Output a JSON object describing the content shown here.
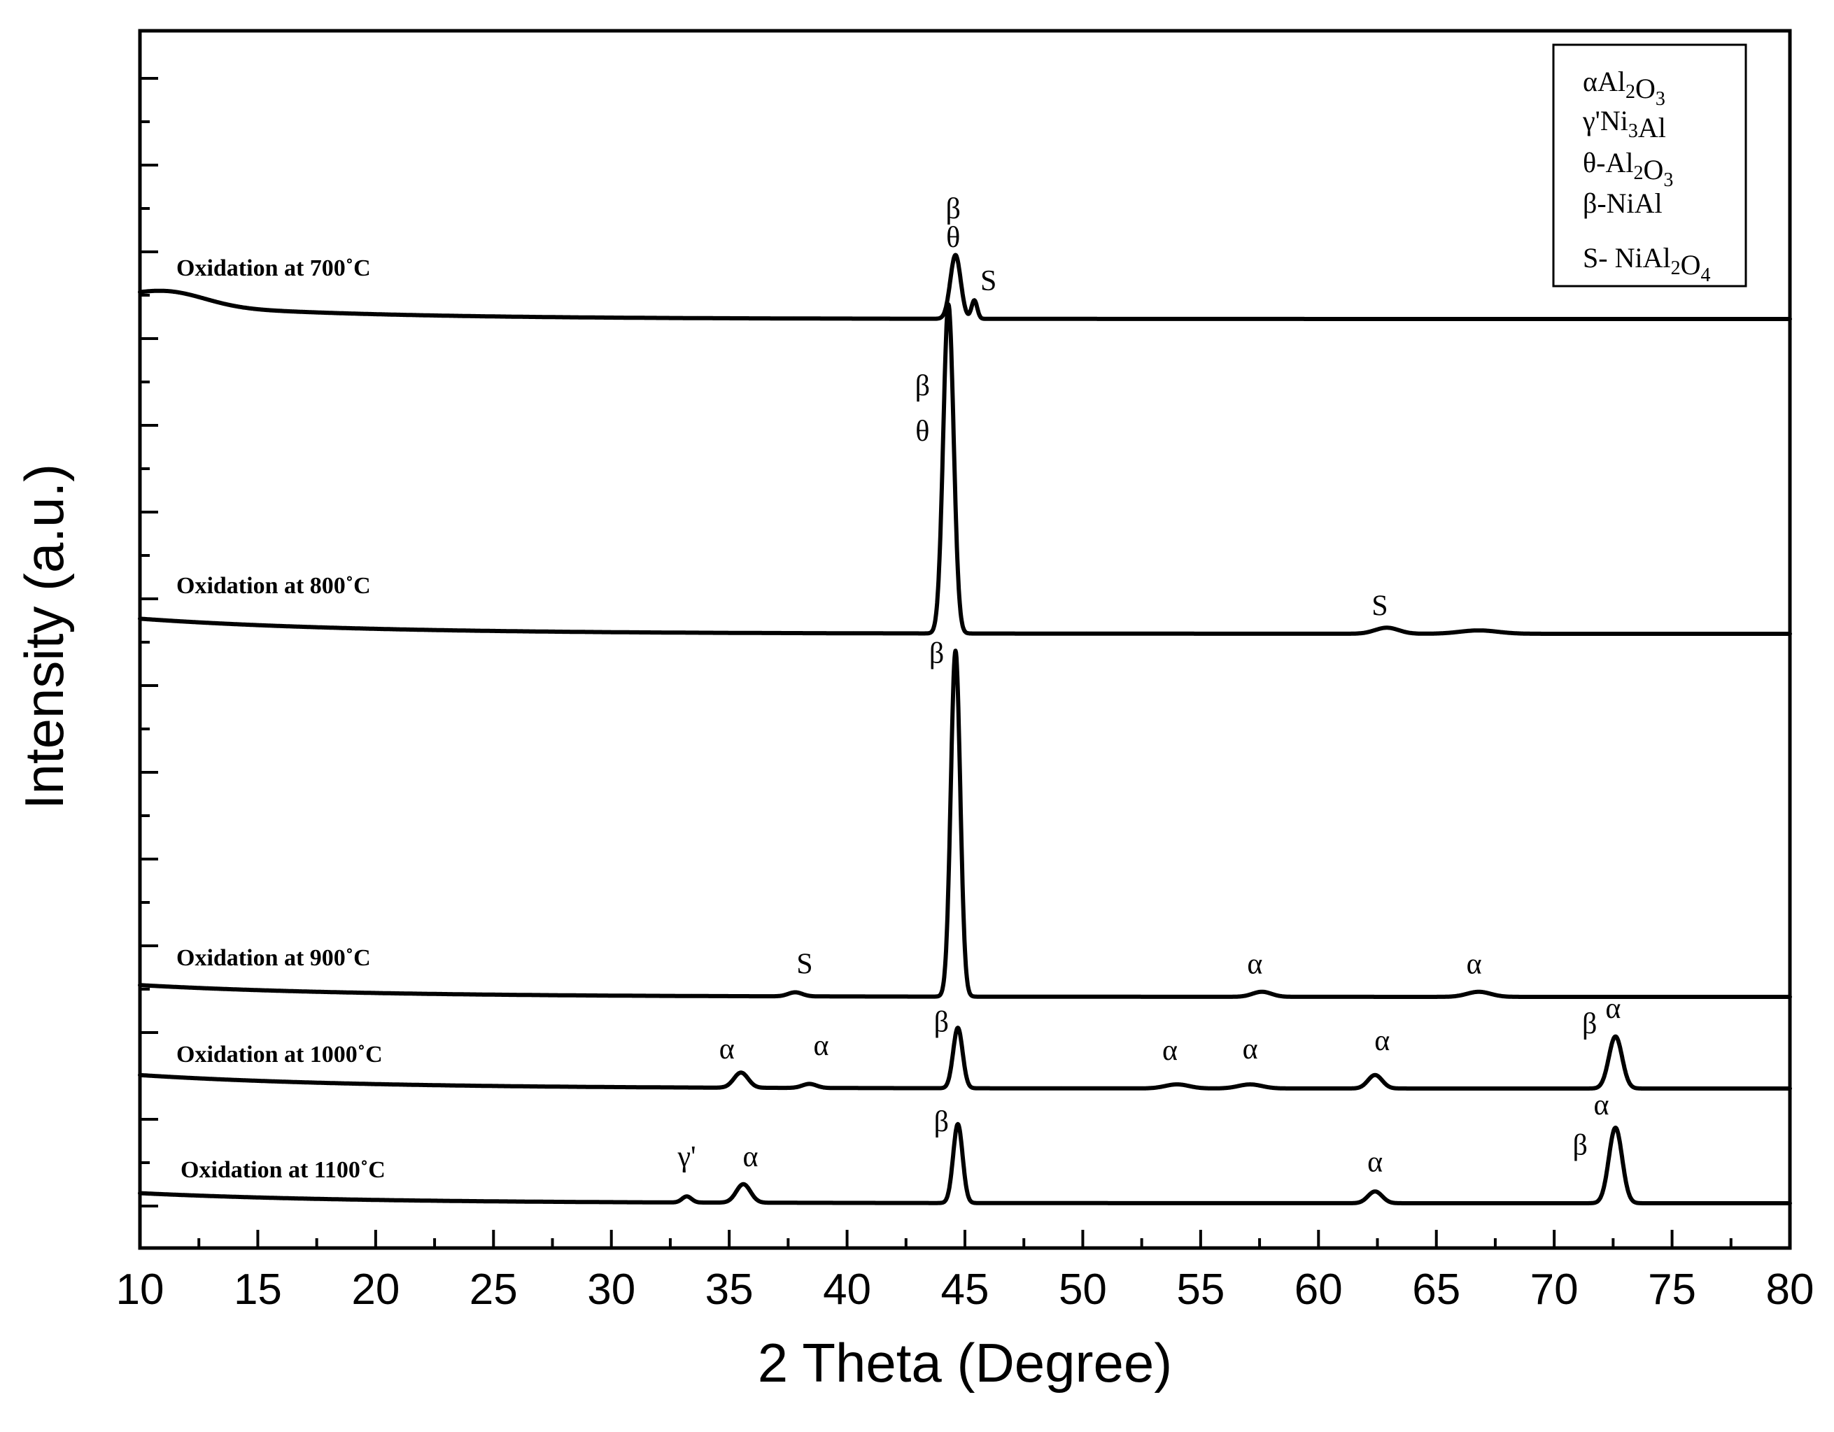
{
  "chart_data": {
    "type": "line",
    "title": "",
    "xlabel": "2 Theta (Degree)",
    "ylabel": "Intensity (a.u.)",
    "xlim": [
      10,
      80
    ],
    "xticks": [
      "10",
      "15",
      "20",
      "25",
      "30",
      "35",
      "40",
      "45",
      "50",
      "55",
      "60",
      "65",
      "70",
      "75",
      "80"
    ],
    "legend": {
      "placement": "top-right",
      "entries": [
        {
          "symbol": "α",
          "formula": [
            [
              "Al",
              ""
            ],
            [
              "2",
              "sub"
            ],
            [
              "O",
              ""
            ],
            [
              "3",
              "sub"
            ]
          ]
        },
        {
          "symbol": "γ'",
          "formula": [
            [
              "Ni",
              ""
            ],
            [
              "3",
              "sub"
            ],
            [
              "Al",
              ""
            ]
          ]
        },
        {
          "symbol": "θ-",
          "formula": [
            [
              "Al",
              ""
            ],
            [
              "2",
              "sub"
            ],
            [
              "O",
              ""
            ],
            [
              "3",
              "sub"
            ]
          ]
        },
        {
          "symbol": "β-",
          "formula": [
            [
              "NiAl",
              ""
            ]
          ]
        },
        {
          "symbol": "S- ",
          "formula": [
            [
              "NiAl",
              ""
            ],
            [
              "2",
              "sub"
            ],
            [
              "O",
              ""
            ],
            [
              "4",
              "sub"
            ]
          ]
        }
      ]
    },
    "series": [
      {
        "name": "Oxidation at 700˚C",
        "peaks": [
          {
            "pos": 11.2,
            "height": 0.4,
            "width": 1.6
          },
          {
            "pos": 44.6,
            "height": 1.9,
            "width": 0.22
          },
          {
            "pos": 45.4,
            "height": 0.55,
            "width": 0.12
          }
        ],
        "baseline": {
          "start": 0.5,
          "end": 0.0,
          "decay": 8
        },
        "annotations": [
          {
            "text": "β",
            "x": 44.5,
            "dy": 3.0
          },
          {
            "text": "θ",
            "x": 44.5,
            "dy": 2.15
          },
          {
            "text": "S",
            "x": 46.0,
            "dy": 0.85
          }
        ]
      },
      {
        "name": "Oxidation at 800˚C",
        "peaks": [
          {
            "pos": 44.3,
            "height": 9.8,
            "width": 0.22
          },
          {
            "pos": 62.9,
            "height": 0.18,
            "width": 0.5
          },
          {
            "pos": 66.8,
            "height": 0.1,
            "width": 0.8
          }
        ],
        "baseline": {
          "start": 0.45,
          "end": 0.0,
          "decay": 9
        },
        "annotations": [
          {
            "text": "β",
            "x": 43.2,
            "dy": 7.1
          },
          {
            "text": "θ",
            "x": 43.2,
            "dy": 5.75
          },
          {
            "text": "S",
            "x": 62.6,
            "dy": 0.55
          }
        ]
      },
      {
        "name": "Oxidation at 900˚C",
        "peaks": [
          {
            "pos": 37.8,
            "height": 0.12,
            "width": 0.3
          },
          {
            "pos": 44.6,
            "height": 10.3,
            "width": 0.2
          },
          {
            "pos": 57.6,
            "height": 0.15,
            "width": 0.4
          },
          {
            "pos": 66.8,
            "height": 0.15,
            "width": 0.5
          }
        ],
        "baseline": {
          "start": 0.35,
          "end": 0.0,
          "decay": 9
        },
        "annotations": [
          {
            "text": "β",
            "x": 43.8,
            "dy": 9.95
          },
          {
            "text": "S",
            "x": 38.2,
            "dy": 0.7
          },
          {
            "text": "α",
            "x": 57.3,
            "dy": 0.7
          },
          {
            "text": "α",
            "x": 66.6,
            "dy": 0.7
          }
        ]
      },
      {
        "name": "Oxidation at 1000˚C",
        "peaks": [
          {
            "pos": 35.5,
            "height": 0.45,
            "width": 0.3
          },
          {
            "pos": 38.4,
            "height": 0.12,
            "width": 0.3
          },
          {
            "pos": 44.7,
            "height": 1.8,
            "width": 0.2
          },
          {
            "pos": 54.0,
            "height": 0.12,
            "width": 0.5
          },
          {
            "pos": 57.1,
            "height": 0.12,
            "width": 0.5
          },
          {
            "pos": 62.4,
            "height": 0.4,
            "width": 0.3
          },
          {
            "pos": 72.6,
            "height": 1.55,
            "width": 0.28
          }
        ],
        "baseline": {
          "start": 0.4,
          "end": 0.0,
          "decay": 9
        },
        "annotations": [
          {
            "text": "α",
            "x": 34.9,
            "dy": 0.9
          },
          {
            "text": "α",
            "x": 38.9,
            "dy": 1.0
          },
          {
            "text": "β",
            "x": 44.0,
            "dy": 1.7
          },
          {
            "text": "α",
            "x": 53.7,
            "dy": 0.85
          },
          {
            "text": "α",
            "x": 57.1,
            "dy": 0.9
          },
          {
            "text": "α",
            "x": 62.7,
            "dy": 1.15
          },
          {
            "text": "β",
            "x": 71.5,
            "dy": 1.65
          },
          {
            "text": "α",
            "x": 72.5,
            "dy": 2.1
          }
        ]
      },
      {
        "name": "Oxidation at 1100˚C",
        "peaks": [
          {
            "pos": 33.2,
            "height": 0.18,
            "width": 0.2
          },
          {
            "pos": 35.6,
            "height": 0.55,
            "width": 0.3
          },
          {
            "pos": 44.7,
            "height": 2.35,
            "width": 0.2
          },
          {
            "pos": 62.4,
            "height": 0.35,
            "width": 0.3
          },
          {
            "pos": 72.6,
            "height": 2.25,
            "width": 0.28
          }
        ],
        "baseline": {
          "start": 0.3,
          "end": 0.0,
          "decay": 9
        },
        "annotations": [
          {
            "text": "γ'",
            "x": 33.2,
            "dy": 1.1
          },
          {
            "text": "α",
            "x": 35.9,
            "dy": 1.1
          },
          {
            "text": "β",
            "x": 44.0,
            "dy": 2.15
          },
          {
            "text": "α",
            "x": 62.4,
            "dy": 0.95
          },
          {
            "text": "β",
            "x": 71.1,
            "dy": 1.45
          },
          {
            "text": "α",
            "x": 72.0,
            "dy": 2.65
          }
        ]
      }
    ]
  }
}
